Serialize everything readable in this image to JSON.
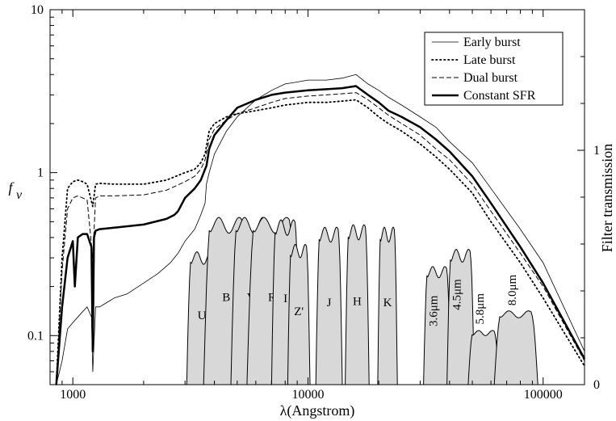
{
  "chart_data": {
    "type": "line",
    "xlabel": "λ(Angstrom)",
    "ylabel": "f",
    "ylabel_subscript": "ν",
    "ylabel_right": "Filter transmission",
    "x_scale": "log",
    "y_scale": "log",
    "xlim": [
      800,
      150000
    ],
    "ylim": [
      0.05,
      10
    ],
    "y2lim": [
      0,
      1.6
    ],
    "x_ticks": [
      {
        "value": 1000,
        "label": "1000"
      },
      {
        "value": 10000,
        "label": "10000"
      },
      {
        "value": 100000,
        "label": "100000"
      }
    ],
    "y_ticks": [
      {
        "value": 0.1,
        "label": "0.1"
      },
      {
        "value": 1,
        "label": "1"
      },
      {
        "value": 10,
        "label": "10"
      }
    ],
    "y2_ticks": [
      {
        "value": 0,
        "label": "0"
      },
      {
        "value": 1,
        "label": "1"
      }
    ],
    "grid": false,
    "legend_position": "top-right",
    "series": [
      {
        "name": "Early burst",
        "style": "thin-solid",
        "x": [
          850,
          900,
          950,
          1000,
          1050,
          1100,
          1150,
          1200,
          1215,
          1250,
          1300,
          1400,
          1500,
          1700,
          2000,
          2300,
          2600,
          2800,
          3000,
          3300,
          3500,
          3650,
          3700,
          3800,
          4000,
          4500,
          5000,
          6000,
          7000,
          8000,
          9000,
          10000,
          12000,
          14000,
          16000,
          18000,
          20000,
          22000,
          25000,
          30000,
          35000,
          40000,
          50000,
          60000,
          80000,
          100000,
          150000
        ],
        "y": [
          0.05,
          0.07,
          0.11,
          0.12,
          0.13,
          0.14,
          0.15,
          0.13,
          0.06,
          0.15,
          0.15,
          0.16,
          0.17,
          0.18,
          0.21,
          0.24,
          0.28,
          0.32,
          0.38,
          0.45,
          0.55,
          0.65,
          0.85,
          1.0,
          1.3,
          1.8,
          2.2,
          2.8,
          3.2,
          3.5,
          3.6,
          3.7,
          3.7,
          3.8,
          4.0,
          3.5,
          3.2,
          2.9,
          2.6,
          2.2,
          1.9,
          1.55,
          1.15,
          0.8,
          0.45,
          0.28,
          0.08
        ]
      },
      {
        "name": "Late burst",
        "style": "dotted",
        "x": [
          850,
          900,
          950,
          1000,
          1050,
          1100,
          1150,
          1215,
          1250,
          1300,
          1500,
          2000,
          2500,
          3000,
          3300,
          3500,
          3650,
          3800,
          4000,
          4500,
          5000,
          6000,
          7000,
          8000,
          10000,
          12000,
          14000,
          16000,
          18000,
          20000,
          22000,
          25000,
          30000,
          35000,
          40000,
          50000,
          60000,
          80000,
          100000,
          150000
        ],
        "y": [
          0.05,
          0.3,
          0.8,
          0.88,
          0.9,
          0.88,
          0.85,
          0.62,
          0.85,
          0.86,
          0.85,
          0.85,
          0.9,
          1.0,
          1.05,
          1.15,
          1.3,
          1.8,
          2.0,
          2.2,
          2.3,
          2.4,
          2.5,
          2.6,
          2.7,
          2.7,
          2.75,
          2.8,
          2.5,
          2.2,
          2.0,
          1.8,
          1.5,
          1.25,
          1.05,
          0.75,
          0.5,
          0.28,
          0.17,
          0.065
        ]
      },
      {
        "name": "Dual burst",
        "style": "dashed",
        "x": [
          850,
          900,
          950,
          1000,
          1050,
          1100,
          1150,
          1215,
          1250,
          1300,
          1500,
          2000,
          2500,
          3000,
          3300,
          3500,
          3650,
          3800,
          4000,
          4500,
          5000,
          6000,
          7000,
          8000,
          10000,
          12000,
          14000,
          16000,
          18000,
          20000,
          22000,
          25000,
          30000,
          35000,
          40000,
          50000,
          60000,
          80000,
          100000,
          150000
        ],
        "y": [
          0.05,
          0.25,
          0.6,
          0.7,
          0.72,
          0.7,
          0.68,
          0.3,
          0.7,
          0.72,
          0.72,
          0.73,
          0.78,
          0.88,
          0.95,
          1.05,
          1.2,
          1.6,
          1.85,
          2.1,
          2.3,
          2.5,
          2.7,
          2.85,
          2.95,
          3.0,
          3.05,
          3.1,
          2.8,
          2.5,
          2.25,
          2.0,
          1.7,
          1.4,
          1.2,
          0.85,
          0.58,
          0.32,
          0.2,
          0.07
        ]
      },
      {
        "name": "Constant SFR",
        "style": "thick-solid",
        "x": [
          850,
          900,
          950,
          1000,
          1020,
          1050,
          1100,
          1150,
          1200,
          1215,
          1230,
          1250,
          1300,
          1500,
          2000,
          2500,
          2700,
          2800,
          3000,
          3300,
          3500,
          3650,
          3700,
          3800,
          4000,
          4500,
          5000,
          6000,
          7000,
          8000,
          10000,
          12000,
          14000,
          16000,
          18000,
          20000,
          22000,
          25000,
          30000,
          35000,
          40000,
          50000,
          60000,
          80000,
          100000,
          150000
        ],
        "y": [
          0.05,
          0.15,
          0.3,
          0.38,
          0.2,
          0.4,
          0.42,
          0.42,
          0.35,
          0.08,
          0.4,
          0.44,
          0.45,
          0.46,
          0.48,
          0.52,
          0.55,
          0.58,
          0.7,
          0.8,
          0.9,
          1.05,
          1.1,
          1.4,
          1.7,
          2.1,
          2.5,
          2.8,
          3.0,
          3.1,
          3.2,
          3.25,
          3.3,
          3.4,
          3.0,
          2.7,
          2.4,
          2.2,
          1.9,
          1.6,
          1.35,
          0.95,
          0.65,
          0.35,
          0.21,
          0.072
        ]
      }
    ],
    "filters": [
      {
        "name": "U",
        "min": 3050,
        "max": 4100,
        "peak": 0.54
      },
      {
        "name": "B",
        "min": 3600,
        "max": 5600,
        "peak": 0.68
      },
      {
        "name": "V",
        "min": 4700,
        "max": 7000,
        "peak": 0.68
      },
      {
        "name": "R",
        "min": 5500,
        "max": 9000,
        "peak": 0.68
      },
      {
        "name": "I",
        "min": 7000,
        "max": 9200,
        "peak": 0.67
      },
      {
        "name": "Z'",
        "min": 8200,
        "max": 10200,
        "peak": 0.57
      },
      {
        "name": "J",
        "min": 10800,
        "max": 14000,
        "peak": 0.64
      },
      {
        "name": "H",
        "min": 14400,
        "max": 18200,
        "peak": 0.65
      },
      {
        "name": "K",
        "min": 19800,
        "max": 24000,
        "peak": 0.64
      },
      {
        "name": "3.6μm",
        "min": 31000,
        "max": 40500,
        "peak": 0.48
      },
      {
        "name": "4.5μm",
        "min": 39000,
        "max": 51000,
        "peak": 0.55
      },
      {
        "name": "5.8μm",
        "min": 48000,
        "max": 65000,
        "peak": 0.22
      },
      {
        "name": "8.0μm",
        "min": 62000,
        "max": 95000,
        "peak": 0.3
      }
    ],
    "colors": {
      "filter_fill": "#d8d8d8",
      "line": "#000000"
    }
  }
}
